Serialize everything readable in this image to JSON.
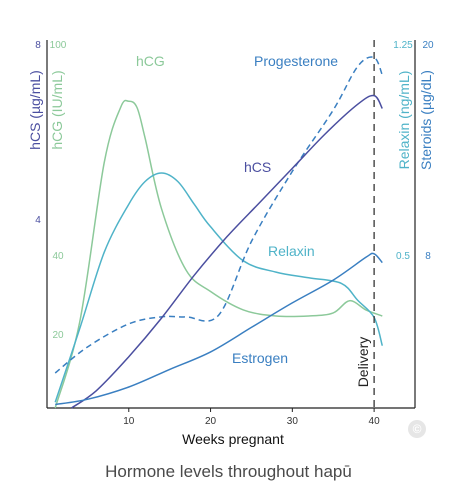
{
  "caption": "Hormone levels throughout hapū",
  "copyright_symbol": "©",
  "chart_data": {
    "type": "line",
    "title": "",
    "xlabel": "Weeks pregnant",
    "x_ticks": [
      10,
      20,
      30,
      40
    ],
    "xlim": [
      0,
      45
    ],
    "axes": {
      "hcs": {
        "label": "hCS (µg/mL)",
        "ticks": [
          "8",
          "4"
        ],
        "color": "#4b4fa0"
      },
      "hcg": {
        "label": "hCG (IU/mL)",
        "ticks": [
          "100",
          "40",
          "20"
        ],
        "color": "#8cc99a"
      },
      "relaxin": {
        "label": "Relaxin (ng/mL)",
        "ticks": [
          "1.25",
          "0.5"
        ],
        "color": "#4fb3c8"
      },
      "steroids": {
        "label": "Steroids (µg/dL)",
        "ticks": [
          "20",
          "8"
        ],
        "color": "#3a7fc1"
      }
    },
    "series": [
      {
        "name": "hCG",
        "axis": "hcg",
        "color": "#8cc99a",
        "style": "solid",
        "x": [
          1,
          4,
          7,
          9,
          10,
          11,
          12,
          14,
          17,
          20,
          24,
          28,
          32,
          35,
          37,
          39,
          41
        ],
        "y": [
          0,
          28,
          80,
          98,
          100,
          98,
          88,
          65,
          45,
          38,
          32,
          30,
          30,
          31,
          35,
          32,
          30
        ]
      },
      {
        "name": "Relaxin",
        "axis": "relaxin",
        "color": "#4fb3c8",
        "style": "solid",
        "x": [
          1,
          4,
          7,
          10,
          12,
          14,
          16,
          18,
          20,
          24,
          28,
          32,
          36,
          38,
          40,
          41
        ],
        "y": [
          0.02,
          0.28,
          0.55,
          0.72,
          0.8,
          0.83,
          0.8,
          0.72,
          0.64,
          0.52,
          0.48,
          0.46,
          0.44,
          0.38,
          0.32,
          0.22
        ]
      },
      {
        "name": "Progesterone",
        "axis": "steroids",
        "color": "#3a7fc1",
        "style": "dashed",
        "x": [
          1,
          5,
          10,
          14,
          17,
          21,
          25,
          30,
          35,
          38,
          40,
          41
        ],
        "y": [
          2,
          3.5,
          4.8,
          5.2,
          5.2,
          5.3,
          9.5,
          13.5,
          17,
          19.5,
          20,
          19
        ]
      },
      {
        "name": "hCS",
        "axis": "hcs",
        "color": "#4b4fa0",
        "style": "solid",
        "x": [
          3,
          6,
          10,
          14,
          18,
          22,
          26,
          30,
          34,
          38,
          40,
          41
        ],
        "y": [
          0,
          0.4,
          1.2,
          2.1,
          3.1,
          4.0,
          4.8,
          5.6,
          6.4,
          7.1,
          7.3,
          7.0
        ]
      },
      {
        "name": "Estrogen",
        "axis": "steroids",
        "color": "#3a7fc1",
        "style": "solid",
        "x": [
          1,
          5,
          10,
          15,
          20,
          25,
          30,
          35,
          39,
          40,
          41
        ],
        "y": [
          0.2,
          0.5,
          1.2,
          2.2,
          3.2,
          4.6,
          6.0,
          7.3,
          8.6,
          8.8,
          8.3
        ]
      }
    ],
    "annotations": [
      {
        "text": "Delivery",
        "x": 40
      }
    ]
  }
}
